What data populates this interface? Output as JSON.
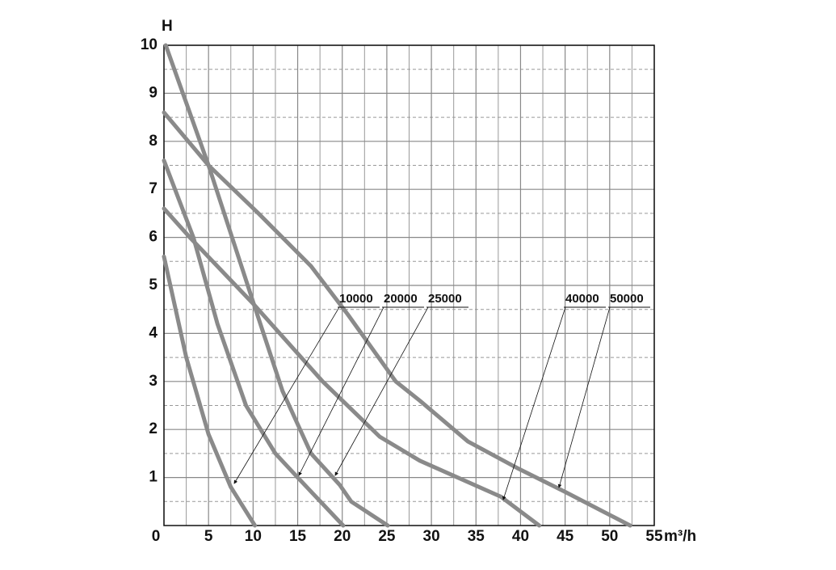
{
  "chart_data": {
    "type": "line",
    "xlabel": "m³/h",
    "ylabel": "H",
    "xlim": [
      0,
      55
    ],
    "ylim": [
      0,
      10
    ],
    "xticks": [
      0,
      5,
      10,
      15,
      20,
      25,
      30,
      35,
      40,
      45,
      50,
      55
    ],
    "yticks": [
      1,
      2,
      3,
      4,
      5,
      6,
      7,
      8,
      9,
      10
    ],
    "grid": true,
    "series": [
      {
        "name": "10000",
        "color": "#8a8a8a",
        "x": [
          0,
          2.5,
          5,
          7.5,
          10.2
        ],
        "values": [
          5.6,
          3.5,
          1.9,
          0.8,
          0
        ]
      },
      {
        "name": "20000",
        "color": "#8a8a8a",
        "x": [
          0,
          3.3,
          6,
          9.2,
          12.5,
          15,
          20.1
        ],
        "values": [
          7.6,
          6,
          4.2,
          2.5,
          1.5,
          1,
          0
        ]
      },
      {
        "name": "25000",
        "color": "#8a8a8a",
        "x": [
          0.2,
          5,
          10.1,
          13.3,
          16.5,
          19.7,
          21,
          25.1
        ],
        "values": [
          10,
          7.5,
          4.6,
          2.8,
          1.5,
          0.85,
          0.5,
          0
        ]
      },
      {
        "name": "40000",
        "color": "#8a8a8a",
        "x": [
          0,
          2.9,
          10.1,
          17.8,
          24.2,
          28.7,
          37.8,
          42.1
        ],
        "values": [
          6.6,
          6,
          4.6,
          3,
          1.85,
          1.35,
          0.6,
          0
        ]
      },
      {
        "name": "50000",
        "color": "#8a8a8a",
        "x": [
          0,
          5,
          10.6,
          16.5,
          20.6,
          23.3,
          26,
          28.7,
          34.1,
          39.6,
          45,
          52.3
        ],
        "values": [
          8.6,
          7.5,
          6.5,
          5.4,
          4.4,
          3.7,
          3,
          2.6,
          1.75,
          1.2,
          0.7,
          0
        ]
      }
    ]
  }
}
